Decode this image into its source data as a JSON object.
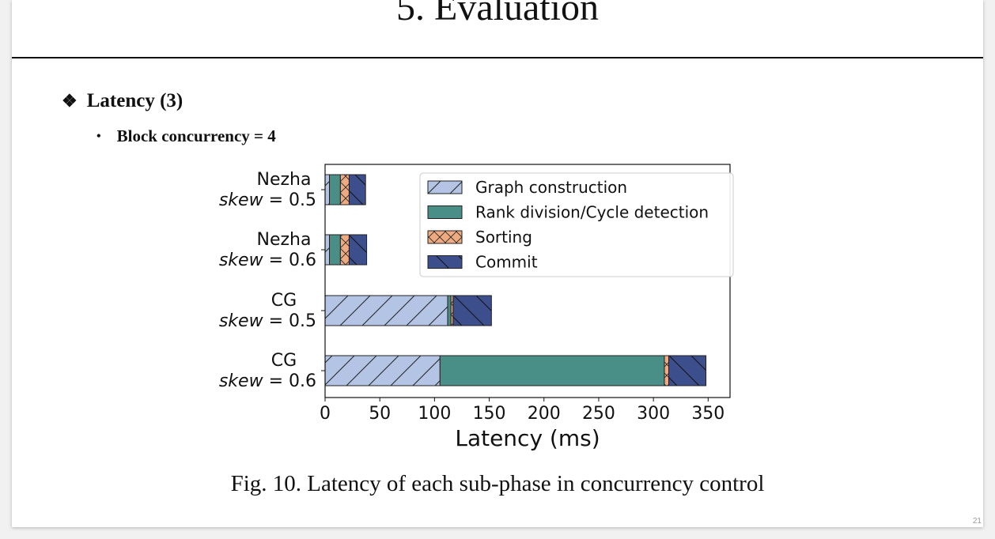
{
  "slide": {
    "title": "5. Evaluation",
    "bullet1": "Latency (3)",
    "bullet2": "Block concurrency = 4",
    "caption": "Fig. 10.  Latency of each sub-phase in concurrency control",
    "page_number": "21"
  },
  "chart_data": {
    "type": "bar",
    "orientation": "horizontal",
    "stacked": true,
    "categories": [
      {
        "name": "Nezha",
        "skew": "0.5"
      },
      {
        "name": "Nezha",
        "skew": "0.6"
      },
      {
        "name": "CG",
        "skew": "0.5"
      },
      {
        "name": "CG",
        "skew": "0.6"
      }
    ],
    "skew_label": "skew",
    "series": [
      {
        "name": "Graph construction",
        "color": "#b4c4e4",
        "pattern": "diag-forward",
        "values": [
          4,
          4,
          112,
          105
        ]
      },
      {
        "name": "Rank division/Cycle detection",
        "color": "#4a8e88",
        "pattern": "solid",
        "values": [
          10,
          10,
          3,
          205
        ]
      },
      {
        "name": "Sorting",
        "color": "#eeaa80",
        "pattern": "cross",
        "values": [
          8,
          8,
          2,
          4
        ]
      },
      {
        "name": "Commit",
        "color": "#3d4e8c",
        "pattern": "diag-back",
        "values": [
          15,
          16,
          35,
          34
        ]
      }
    ],
    "xlabel": "Latency (ms)",
    "xlim": [
      0,
      370
    ],
    "xticks": [
      0,
      50,
      100,
      150,
      200,
      250,
      300,
      350
    ],
    "legend_position": "top-right",
    "grid": false
  }
}
